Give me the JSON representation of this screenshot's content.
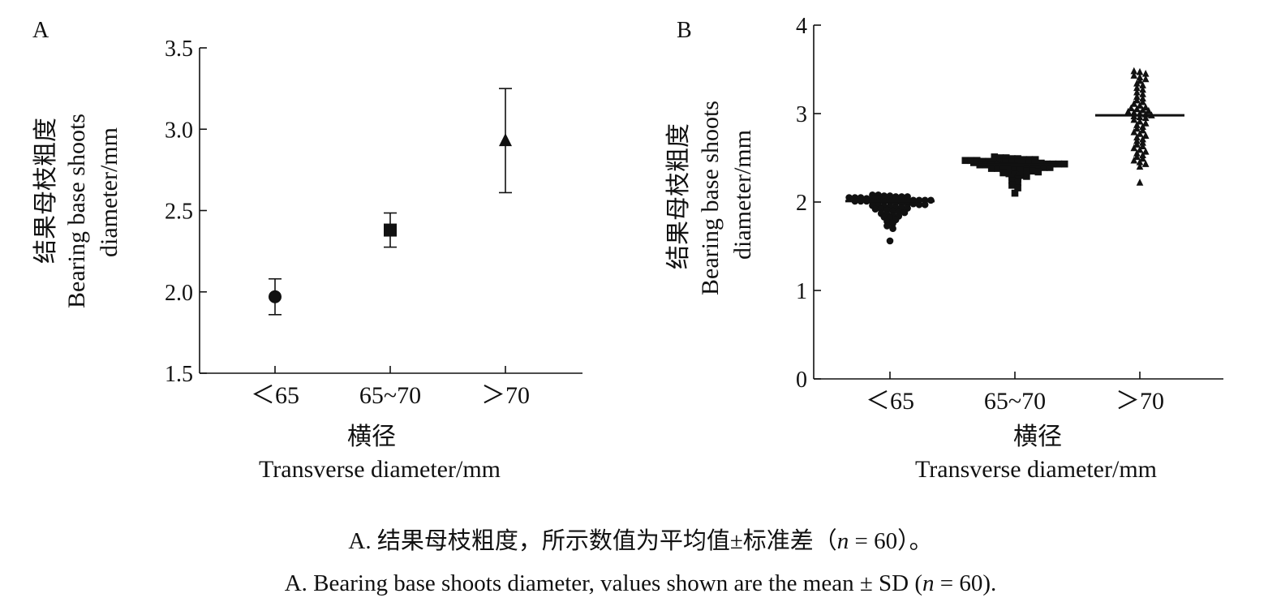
{
  "chart_data": [
    {
      "panel": "A",
      "type": "scatter",
      "categories": [
        "＜65",
        "65~70",
        "＞70"
      ],
      "markers": [
        "circle",
        "square",
        "triangle"
      ],
      "series": [
        {
          "mean": [
            1.97,
            2.38,
            2.93
          ],
          "sd": [
            0.11,
            0.105,
            0.32
          ]
        }
      ],
      "xlabel_zh": "横径",
      "xlabel_en": "Transverse diameter/mm",
      "ylabel_zh": "结果母枝粗度",
      "ylabel_en_1": "Bearing base shoots",
      "ylabel_en_2": "diameter/mm",
      "ylim": [
        1.5,
        3.5
      ],
      "yticks": [
        1.5,
        2.0,
        2.5,
        3.0,
        3.5
      ],
      "ytick_labels": [
        "1.5",
        "2.0",
        "2.5",
        "3.0",
        "3.5"
      ],
      "grid": false
    },
    {
      "panel": "B",
      "type": "scatter",
      "categories": [
        "＜65",
        "65~70",
        "＞70"
      ],
      "markers": [
        "circle",
        "square",
        "triangle"
      ],
      "group_means": [
        2.01,
        2.42,
        2.98
      ],
      "points": [
        [
          2.08,
          2.08,
          2.07,
          2.07,
          2.06,
          2.06,
          2.06,
          2.05,
          2.05,
          2.05,
          2.04,
          2.04,
          2.04,
          2.04,
          2.03,
          2.03,
          2.03,
          2.03,
          2.02,
          2.02,
          2.02,
          2.02,
          2.01,
          2.01,
          2.01,
          2.0,
          2.0,
          2.0,
          2.0,
          1.99,
          1.99,
          1.98,
          1.98,
          1.97,
          1.97,
          1.96,
          1.96,
          1.95,
          1.95,
          1.94,
          1.94,
          1.93,
          1.92,
          1.92,
          1.91,
          1.9,
          1.89,
          1.88,
          1.87,
          1.86,
          1.85,
          1.84,
          1.83,
          1.82,
          1.8,
          1.78,
          1.76,
          1.73,
          1.7,
          1.56
        ],
        [
          2.51,
          2.5,
          2.5,
          2.49,
          2.49,
          2.48,
          2.48,
          2.48,
          2.47,
          2.47,
          2.47,
          2.46,
          2.46,
          2.46,
          2.45,
          2.45,
          2.45,
          2.45,
          2.44,
          2.44,
          2.44,
          2.44,
          2.43,
          2.43,
          2.43,
          2.43,
          2.42,
          2.42,
          2.42,
          2.42,
          2.41,
          2.41,
          2.41,
          2.4,
          2.4,
          2.4,
          2.39,
          2.39,
          2.39,
          2.38,
          2.38,
          2.37,
          2.37,
          2.36,
          2.36,
          2.35,
          2.35,
          2.34,
          2.33,
          2.32,
          2.31,
          2.3,
          2.29,
          2.28,
          2.26,
          2.24,
          2.22,
          2.19,
          2.16,
          2.1
        ],
        [
          3.48,
          3.47,
          3.45,
          3.43,
          3.41,
          3.39,
          3.37,
          3.34,
          3.32,
          3.29,
          3.27,
          3.24,
          3.22,
          3.19,
          3.17,
          3.15,
          3.13,
          3.11,
          3.09,
          3.07,
          3.06,
          3.05,
          3.04,
          3.03,
          3.02,
          3.01,
          3.0,
          2.99,
          2.98,
          2.97,
          2.96,
          2.95,
          2.93,
          2.91,
          2.89,
          2.87,
          2.85,
          2.83,
          2.81,
          2.79,
          2.77,
          2.75,
          2.73,
          2.71,
          2.69,
          2.67,
          2.65,
          2.63,
          2.61,
          2.59,
          2.57,
          2.55,
          2.53,
          2.51,
          2.49,
          2.47,
          2.45,
          2.43,
          2.4,
          2.22
        ]
      ],
      "xlabel_zh": "横径",
      "xlabel_en": "Transverse diameter/mm",
      "ylabel_zh": "结果母枝粗度",
      "ylabel_en_1": "Bearing base shoots",
      "ylabel_en_2": "diameter/mm",
      "ylim": [
        0,
        4
      ],
      "yticks": [
        0,
        1,
        2,
        3,
        4
      ],
      "ytick_labels": [
        "0",
        "1",
        "2",
        "3",
        "4"
      ],
      "grid": false
    }
  ],
  "caption": {
    "zh_before": "A. 结果母枝粗度，所示数值为平均值±标准差（",
    "zh_n": "n",
    "zh_after": " = 60）。",
    "en_before": "A. Bearing base shoots diameter, values shown are the mean ± SD (",
    "en_n": "n",
    "en_after": " = 60)."
  }
}
